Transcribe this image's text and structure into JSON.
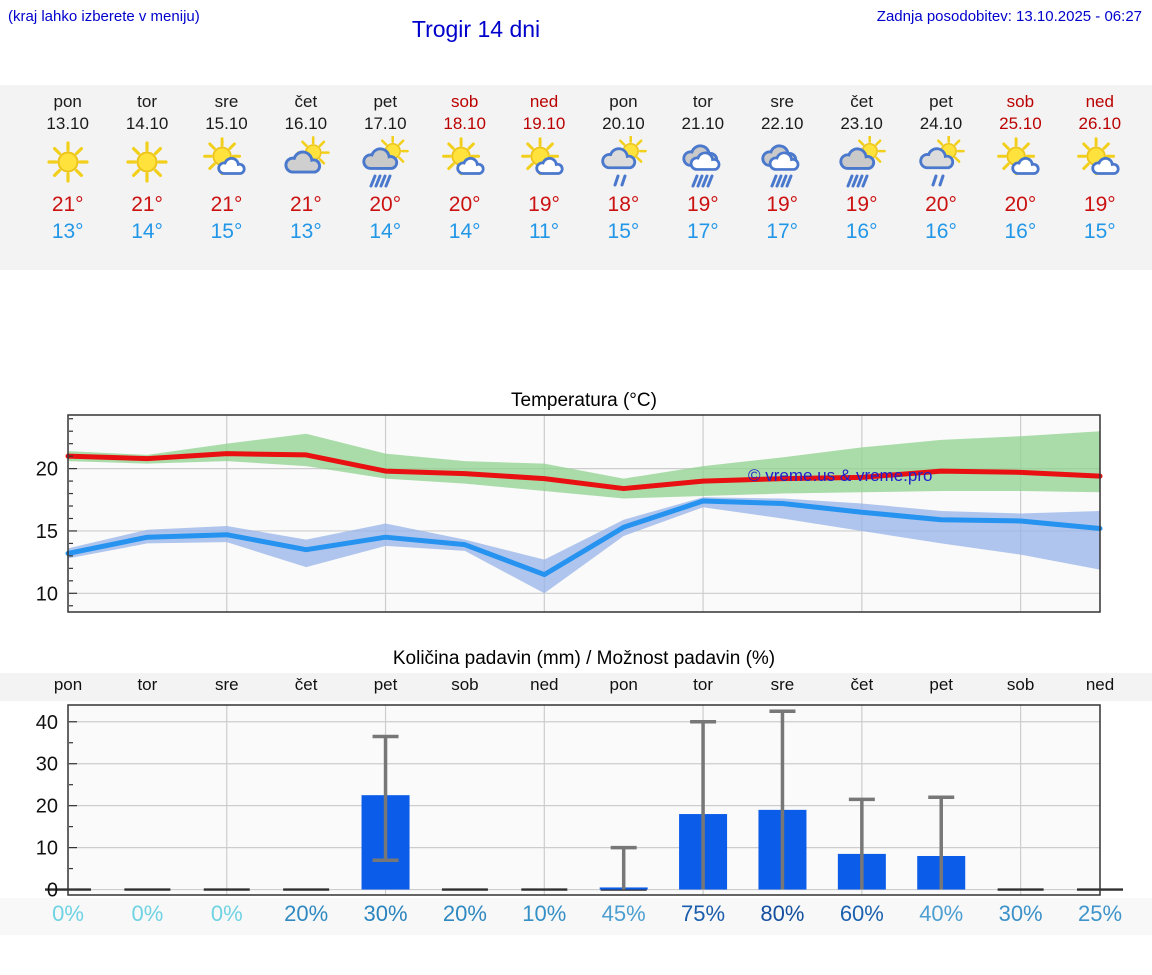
{
  "header": {
    "menu_hint": "(kraj lahko izberete v meniju)",
    "title": "Trogir 14 dni",
    "last_update": "Zadnja posodobitev: 13.10.2025 - 06:27"
  },
  "watermark": "© vreme.us & vreme.pro",
  "colors": {
    "header_blue": "#0000cc",
    "weekend_red": "#bb0000",
    "high_temp_red": "#cc1111",
    "low_temp_blue": "#2297e8",
    "strip_bg": "#f3f3f3",
    "grid": "#cdcdcd",
    "plot_border": "#333333",
    "bar_blue": "#0b5ce8",
    "error_gray": "#777777"
  },
  "forecast": {
    "days": [
      {
        "name": "pon",
        "date": "13.10",
        "weekend": false,
        "icon": "sun",
        "high": "21°",
        "low": "13°"
      },
      {
        "name": "tor",
        "date": "14.10",
        "weekend": false,
        "icon": "sun",
        "high": "21°",
        "low": "14°"
      },
      {
        "name": "sre",
        "date": "15.10",
        "weekend": false,
        "icon": "sun-cloud",
        "high": "21°",
        "low": "15°"
      },
      {
        "name": "čet",
        "date": "16.10",
        "weekend": false,
        "icon": "sun-gray-cloud",
        "high": "21°",
        "low": "13°"
      },
      {
        "name": "pet",
        "date": "17.10",
        "weekend": false,
        "icon": "sun-rain",
        "high": "20°",
        "low": "14°"
      },
      {
        "name": "sob",
        "date": "18.10",
        "weekend": true,
        "icon": "sun-cloud",
        "high": "20°",
        "low": "14°"
      },
      {
        "name": "ned",
        "date": "19.10",
        "weekend": true,
        "icon": "sun-cloud",
        "high": "19°",
        "low": "11°"
      },
      {
        "name": "pon",
        "date": "20.10",
        "weekend": false,
        "icon": "sun-light-rain",
        "high": "18°",
        "low": "15°"
      },
      {
        "name": "tor",
        "date": "21.10",
        "weekend": false,
        "icon": "rain",
        "high": "19°",
        "low": "17°"
      },
      {
        "name": "sre",
        "date": "22.10",
        "weekend": false,
        "icon": "rain",
        "high": "19°",
        "low": "17°"
      },
      {
        "name": "čet",
        "date": "23.10",
        "weekend": false,
        "icon": "sun-rain",
        "high": "19°",
        "low": "16°"
      },
      {
        "name": "pet",
        "date": "24.10",
        "weekend": false,
        "icon": "sun-light-rain",
        "high": "20°",
        "low": "16°"
      },
      {
        "name": "sob",
        "date": "25.10",
        "weekend": true,
        "icon": "sun-cloud",
        "high": "20°",
        "low": "16°"
      },
      {
        "name": "ned",
        "date": "26.10",
        "weekend": true,
        "icon": "sun-cloud",
        "high": "19°",
        "low": "15°"
      }
    ]
  },
  "chart_data": [
    {
      "type": "line",
      "title": "Temperatura (°C)",
      "categories": [
        "pon",
        "tor",
        "sre",
        "čet",
        "pet",
        "sob",
        "ned",
        "pon",
        "tor",
        "sre",
        "čet",
        "pet",
        "sob",
        "ned"
      ],
      "ylim": [
        8.5,
        24.3
      ],
      "yticks": [
        10,
        15,
        20
      ],
      "grid": true,
      "series": [
        {
          "name": "max temperatura",
          "color": "#e81010",
          "values": [
            21.0,
            20.8,
            21.2,
            21.1,
            19.8,
            19.6,
            19.2,
            18.4,
            19.0,
            19.2,
            19.3,
            19.8,
            19.7,
            19.4
          ],
          "band_upper": [
            21.4,
            21.1,
            22.0,
            22.8,
            21.2,
            20.6,
            20.4,
            19.2,
            20.2,
            20.9,
            21.7,
            22.3,
            22.6,
            23.0
          ],
          "band_lower": [
            20.6,
            20.4,
            20.6,
            20.2,
            19.2,
            18.8,
            18.2,
            17.6,
            17.8,
            18.0,
            18.1,
            18.2,
            18.2,
            18.1
          ],
          "band_color": "#8fd18f"
        },
        {
          "name": "min temperatura",
          "color": "#2593ef",
          "values": [
            13.2,
            14.5,
            14.7,
            13.5,
            14.5,
            13.9,
            11.5,
            15.3,
            17.4,
            17.2,
            16.5,
            15.9,
            15.8,
            15.2
          ],
          "band_upper": [
            13.6,
            15.1,
            15.4,
            14.3,
            15.6,
            14.3,
            12.7,
            15.9,
            17.7,
            17.6,
            17.2,
            16.6,
            16.4,
            16.6
          ],
          "band_lower": [
            12.8,
            14.0,
            14.1,
            12.1,
            13.8,
            13.4,
            10.0,
            14.6,
            16.9,
            16.0,
            15.0,
            14.0,
            13.1,
            11.9
          ],
          "band_color": "#96b3e8"
        }
      ]
    },
    {
      "type": "bar",
      "title": "Količina padavin (mm) / Možnost padavin (%)",
      "categories": [
        "pon",
        "tor",
        "sre",
        "čet",
        "pet",
        "sob",
        "ned",
        "pon",
        "tor",
        "sre",
        "čet",
        "pet",
        "sob",
        "ned"
      ],
      "values": [
        0,
        0,
        0,
        0,
        22.5,
        0,
        0,
        0.5,
        18,
        19,
        8.5,
        8,
        0,
        0
      ],
      "error_low": [
        0,
        0,
        0,
        0,
        7,
        0,
        0,
        0,
        0,
        0,
        0,
        0,
        0,
        0
      ],
      "error_high": [
        0,
        0,
        0,
        0,
        36.5,
        0,
        0,
        10,
        40,
        42.5,
        21.5,
        22,
        0,
        0
      ],
      "probabilities": [
        "0%",
        "0%",
        "0%",
        "20%",
        "30%",
        "20%",
        "10%",
        "45%",
        "75%",
        "80%",
        "60%",
        "40%",
        "30%",
        "25%"
      ],
      "prob_colors": [
        "#6fd3e3",
        "#6fd3e3",
        "#6fd3e3",
        "#3089c1",
        "#2a84be",
        "#3089c1",
        "#3690c6",
        "#4d9ed1",
        "#1a5dac",
        "#14509f",
        "#1d62af",
        "#4d9ed1",
        "#3b91c8",
        "#3f94ca"
      ],
      "ylim": [
        -1.3,
        44
      ],
      "yticks": [
        0,
        10,
        20,
        30,
        40
      ],
      "grid": true,
      "bar_color": "#0b5ce8"
    }
  ]
}
